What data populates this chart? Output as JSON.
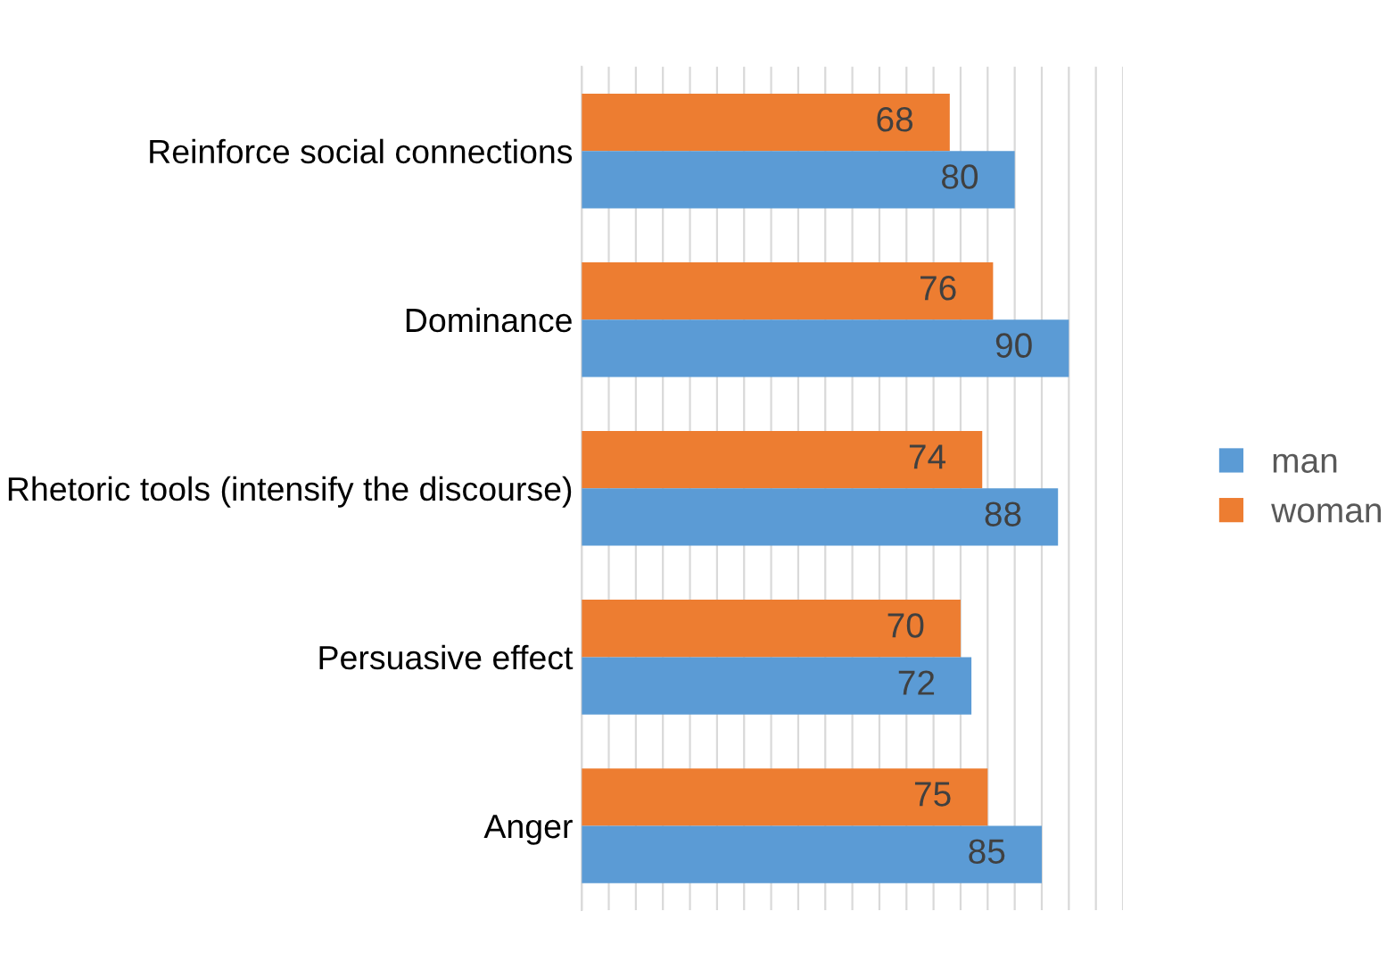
{
  "chart_data": {
    "type": "bar",
    "orientation": "horizontal",
    "categories": [
      "Reinforce social connections",
      "Dominance",
      "Rhetoric tools (intensify the discourse)",
      "Persuasive effect",
      "Anger"
    ],
    "series": [
      {
        "name": "woman",
        "color": "#ed7d31",
        "values": [
          68,
          76,
          74,
          70,
          75
        ]
      },
      {
        "name": "man",
        "color": "#5b9bd5",
        "values": [
          80,
          90,
          88,
          72,
          85
        ]
      }
    ],
    "xlim": [
      0,
      100
    ],
    "xticks": [
      {
        "value": 0,
        "label": null
      },
      {
        "value": 5,
        "label": null
      },
      {
        "value": 10,
        "label": null
      },
      {
        "value": 15,
        "label": null
      },
      {
        "value": 20,
        "label": null
      },
      {
        "value": 25,
        "label": null
      },
      {
        "value": 30,
        "label": null
      },
      {
        "value": 35,
        "label": null
      },
      {
        "value": 40,
        "label": null
      },
      {
        "value": 45,
        "label": null
      },
      {
        "value": 50,
        "label": null
      },
      {
        "value": 55,
        "label": null
      },
      {
        "value": 60,
        "label": null
      },
      {
        "value": 65,
        "label": null
      },
      {
        "value": 70,
        "label": null
      },
      {
        "value": 75,
        "label": null
      },
      {
        "value": 80,
        "label": null
      },
      {
        "value": 85,
        "label": null
      },
      {
        "value": 90,
        "label": null
      },
      {
        "value": 95,
        "label": null
      },
      {
        "value": 100,
        "label": null
      }
    ],
    "tick_labels": "y",
    "grid": "x",
    "legend": "right",
    "data_labels": true
  }
}
